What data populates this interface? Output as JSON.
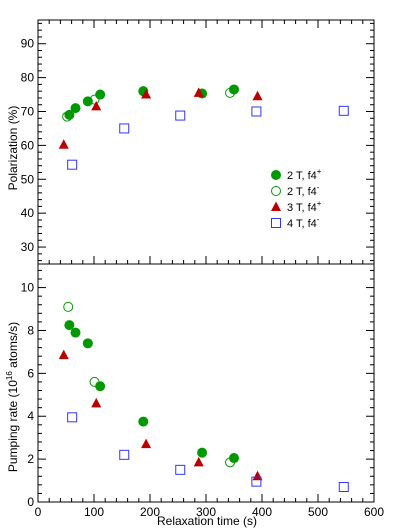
{
  "chart_data": [
    {
      "type": "scatter",
      "title": "",
      "xlabel": "",
      "ylabel": "Polarization (%)",
      "xlim": [
        0,
        600
      ],
      "ylim": [
        25,
        97
      ],
      "xticks": [
        0,
        100,
        200,
        300,
        400,
        500,
        600
      ],
      "yticks": [
        30,
        40,
        50,
        60,
        70,
        80,
        90
      ],
      "ytick_labels": [
        "30",
        "40",
        "50",
        "60",
        "70",
        "80",
        "90"
      ],
      "grid": false,
      "legend_position": "center-right",
      "series": [
        {
          "name": "2 T, f4+",
          "legend_label": "2 T, f4",
          "legend_sup": "+",
          "marker": "filled-circle",
          "color": "#009900",
          "points": [
            {
              "x": 56,
              "y": 69.0
            },
            {
              "x": 67,
              "y": 71.0
            },
            {
              "x": 89,
              "y": 73.0
            },
            {
              "x": 111,
              "y": 75.0
            },
            {
              "x": 188,
              "y": 76.0
            },
            {
              "x": 293,
              "y": 75.3
            },
            {
              "x": 350,
              "y": 76.5
            }
          ]
        },
        {
          "name": "2 T, f4-",
          "legend_label": "2 T, f4",
          "legend_sup": "-",
          "marker": "open-circle",
          "color": "#009900",
          "points": [
            {
              "x": 52,
              "y": 68.5
            },
            {
              "x": 101,
              "y": 73.5
            },
            {
              "x": 343,
              "y": 75.5
            }
          ]
        },
        {
          "name": "3 T, f4+",
          "legend_label": "3 T, f4",
          "legend_sup": "+",
          "marker": "filled-triangle",
          "color": "#bb0000",
          "points": [
            {
              "x": 46,
              "y": 60.2
            },
            {
              "x": 104,
              "y": 71.5
            },
            {
              "x": 193,
              "y": 75.0
            },
            {
              "x": 287,
              "y": 75.5
            },
            {
              "x": 392,
              "y": 74.5
            }
          ]
        },
        {
          "name": "4 T, f4-",
          "legend_label": "4 T, f4",
          "legend_sup": "-",
          "marker": "open-square",
          "color": "#3333ff",
          "points": [
            {
              "x": 61,
              "y": 54.3
            },
            {
              "x": 154,
              "y": 65.0
            },
            {
              "x": 254,
              "y": 68.8
            },
            {
              "x": 390,
              "y": 70.0
            },
            {
              "x": 546,
              "y": 70.2
            }
          ]
        }
      ]
    },
    {
      "type": "scatter",
      "title": "",
      "xlabel": "Relaxation time (s)",
      "ylabel_main": "Pumping rate (10",
      "ylabel_sup": "16",
      "ylabel_end": " atoms/s)",
      "xlim": [
        0,
        600
      ],
      "ylim": [
        0,
        11.1
      ],
      "xticks": [
        0,
        100,
        200,
        300,
        400,
        500,
        600
      ],
      "xtick_labels": [
        "0",
        "100",
        "200",
        "300",
        "400",
        "500",
        "600"
      ],
      "yticks": [
        0,
        2,
        4,
        6,
        8,
        10
      ],
      "ytick_labels": [
        "0",
        "2",
        "4",
        "6",
        "8",
        "10"
      ],
      "grid": false,
      "series": [
        {
          "name": "2 T, f4+",
          "marker": "filled-circle",
          "color": "#009900",
          "points": [
            {
              "x": 56,
              "y": 8.25
            },
            {
              "x": 67,
              "y": 7.9
            },
            {
              "x": 89,
              "y": 7.4
            },
            {
              "x": 111,
              "y": 5.4
            },
            {
              "x": 188,
              "y": 3.75
            },
            {
              "x": 293,
              "y": 2.3
            },
            {
              "x": 350,
              "y": 2.05
            }
          ]
        },
        {
          "name": "2 T, f4-",
          "marker": "open-circle",
          "color": "#009900",
          "points": [
            {
              "x": 54,
              "y": 9.1
            },
            {
              "x": 101,
              "y": 5.6
            },
            {
              "x": 343,
              "y": 1.85
            }
          ]
        },
        {
          "name": "3 T, f4+",
          "marker": "filled-triangle",
          "color": "#bb0000",
          "points": [
            {
              "x": 46,
              "y": 6.85
            },
            {
              "x": 104,
              "y": 4.6
            },
            {
              "x": 193,
              "y": 2.7
            },
            {
              "x": 287,
              "y": 1.85
            },
            {
              "x": 392,
              "y": 1.2
            }
          ]
        },
        {
          "name": "4 T, f4-",
          "marker": "open-square",
          "color": "#3333ff",
          "points": [
            {
              "x": 61,
              "y": 3.95
            },
            {
              "x": 154,
              "y": 2.2
            },
            {
              "x": 254,
              "y": 1.5
            },
            {
              "x": 390,
              "y": 0.95
            },
            {
              "x": 546,
              "y": 0.7
            }
          ]
        }
      ]
    }
  ]
}
